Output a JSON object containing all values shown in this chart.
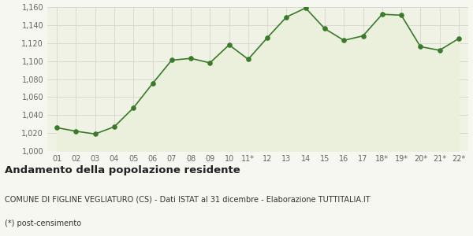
{
  "x_labels": [
    "01",
    "02",
    "03",
    "04",
    "05",
    "06",
    "07",
    "08",
    "09",
    "10",
    "11*",
    "12",
    "13",
    "14",
    "15",
    "16",
    "17",
    "18*",
    "19*",
    "20*",
    "21*",
    "22*"
  ],
  "y_values": [
    1026,
    1022,
    1019,
    1027,
    1048,
    1075,
    1101,
    1103,
    1098,
    1118,
    1102,
    1126,
    1149,
    1159,
    1136,
    1123,
    1128,
    1152,
    1151,
    1116,
    1112,
    1125
  ],
  "ylim": [
    1000,
    1160
  ],
  "yticks": [
    1000,
    1020,
    1040,
    1060,
    1080,
    1100,
    1120,
    1140,
    1160
  ],
  "line_color": "#3a7a2a",
  "fill_color": "#eaf0dc",
  "marker_color": "#3a7a2a",
  "background_color": "#f7f7f2",
  "plot_bg_color": "#f0f2e6",
  "grid_color": "#d0d0c8",
  "title": "Andamento della popolazione residente",
  "subtitle": "COMUNE DI FIGLINE VEGLIATURO (CS) - Dati ISTAT al 31 dicembre - Elaborazione TUTTITALIA.IT",
  "footnote": "(*) post-censimento",
  "title_fontsize": 9.5,
  "subtitle_fontsize": 7.0,
  "footnote_fontsize": 7.0,
  "tick_fontsize": 7.0
}
